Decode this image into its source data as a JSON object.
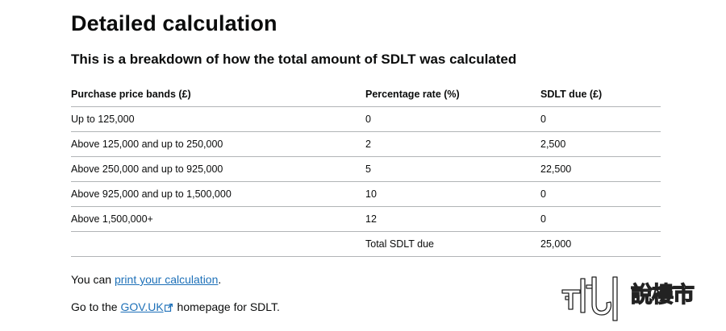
{
  "page": {
    "title": "Detailed calculation",
    "subtitle": "This is a breakdown of how the total amount of SDLT was calculated"
  },
  "table": {
    "headers": {
      "band": "Purchase price bands (£)",
      "rate": "Percentage rate (%)",
      "due": "SDLT due (£)"
    },
    "rows": [
      {
        "band": "Up to 125,000",
        "rate": "0",
        "due": "0"
      },
      {
        "band": "Above 125,000 and up to 250,000",
        "rate": "2",
        "due": "2,500"
      },
      {
        "band": "Above 250,000 and up to 925,000",
        "rate": "5",
        "due": "22,500"
      },
      {
        "band": "Above 925,000 and up to 1,500,000",
        "rate": "10",
        "due": "0"
      },
      {
        "band": "Above 1,500,000+",
        "rate": "12",
        "due": "0"
      }
    ],
    "total": {
      "band": "",
      "label": "Total SDLT due",
      "value": "25,000"
    }
  },
  "print_para": {
    "prefix": "You can ",
    "link": "print your calculation",
    "suffix": "."
  },
  "gov_para": {
    "prefix": "Go to the ",
    "link": "GOV.UK",
    "suffix": " homepage for SDLT."
  },
  "watermark": {
    "text": "說樓市"
  },
  "colors": {
    "link": "#1d70b8",
    "text": "#0b0c0c",
    "border": "#b1b4b6"
  },
  "icons": {
    "external": "external-link-icon"
  }
}
